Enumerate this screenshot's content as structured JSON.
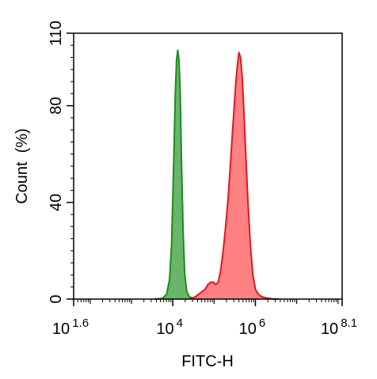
{
  "chart_data": {
    "type": "area",
    "title": "",
    "xlabel": "FITC-H",
    "ylabel": "Count  (%)",
    "x_scale": "log10",
    "xlim": [
      1.6,
      8.1
    ],
    "ylim": [
      0,
      110
    ],
    "x_ticks": [
      {
        "base": "10",
        "exp": "1.6",
        "value": 1.6
      },
      {
        "base": "10",
        "exp": "4",
        "value": 4
      },
      {
        "base": "10",
        "exp": "6",
        "value": 6
      },
      {
        "base": "10",
        "exp": "8.1",
        "value": 8.1
      }
    ],
    "y_ticks": [
      {
        "label": "0",
        "value": 0
      },
      {
        "label": "40",
        "value": 40
      },
      {
        "label": "80",
        "value": 80
      },
      {
        "label": "110",
        "value": 110
      }
    ],
    "grid": false,
    "legend": "none",
    "series": [
      {
        "color": "#1e8c1e",
        "fill": "#4fa84f",
        "x": [
          3.55,
          3.75,
          3.85,
          3.92,
          3.97,
          4.02,
          4.06,
          4.09,
          4.12,
          4.15,
          4.18,
          4.21,
          4.25,
          4.29,
          4.34,
          4.4,
          4.48,
          4.58,
          4.7
        ],
        "y": [
          0,
          0.3,
          2,
          8,
          22,
          55,
          85,
          99,
          103,
          99,
          85,
          58,
          28,
          10,
          3,
          1,
          0.4,
          0.1,
          0
        ]
      },
      {
        "color": "#e8141e",
        "fill": "#ff6b6b",
        "x": [
          4.4,
          4.55,
          4.7,
          4.78,
          4.85,
          4.92,
          4.98,
          5.04,
          5.1,
          5.16,
          5.22,
          5.28,
          5.34,
          5.4,
          5.44,
          5.48,
          5.52,
          5.56,
          5.6,
          5.64,
          5.68,
          5.72,
          5.76,
          5.82,
          5.88,
          5.94,
          6.0,
          6.07,
          6.15,
          6.25,
          6.4,
          6.55
        ],
        "y": [
          0,
          1,
          3,
          4,
          6,
          7,
          7,
          6,
          7,
          12,
          20,
          30,
          42,
          57,
          68,
          78,
          88,
          96,
          102,
          100,
          92,
          78,
          62,
          40,
          22,
          10,
          4,
          2,
          1,
          0.5,
          0.1,
          0
        ]
      }
    ]
  }
}
